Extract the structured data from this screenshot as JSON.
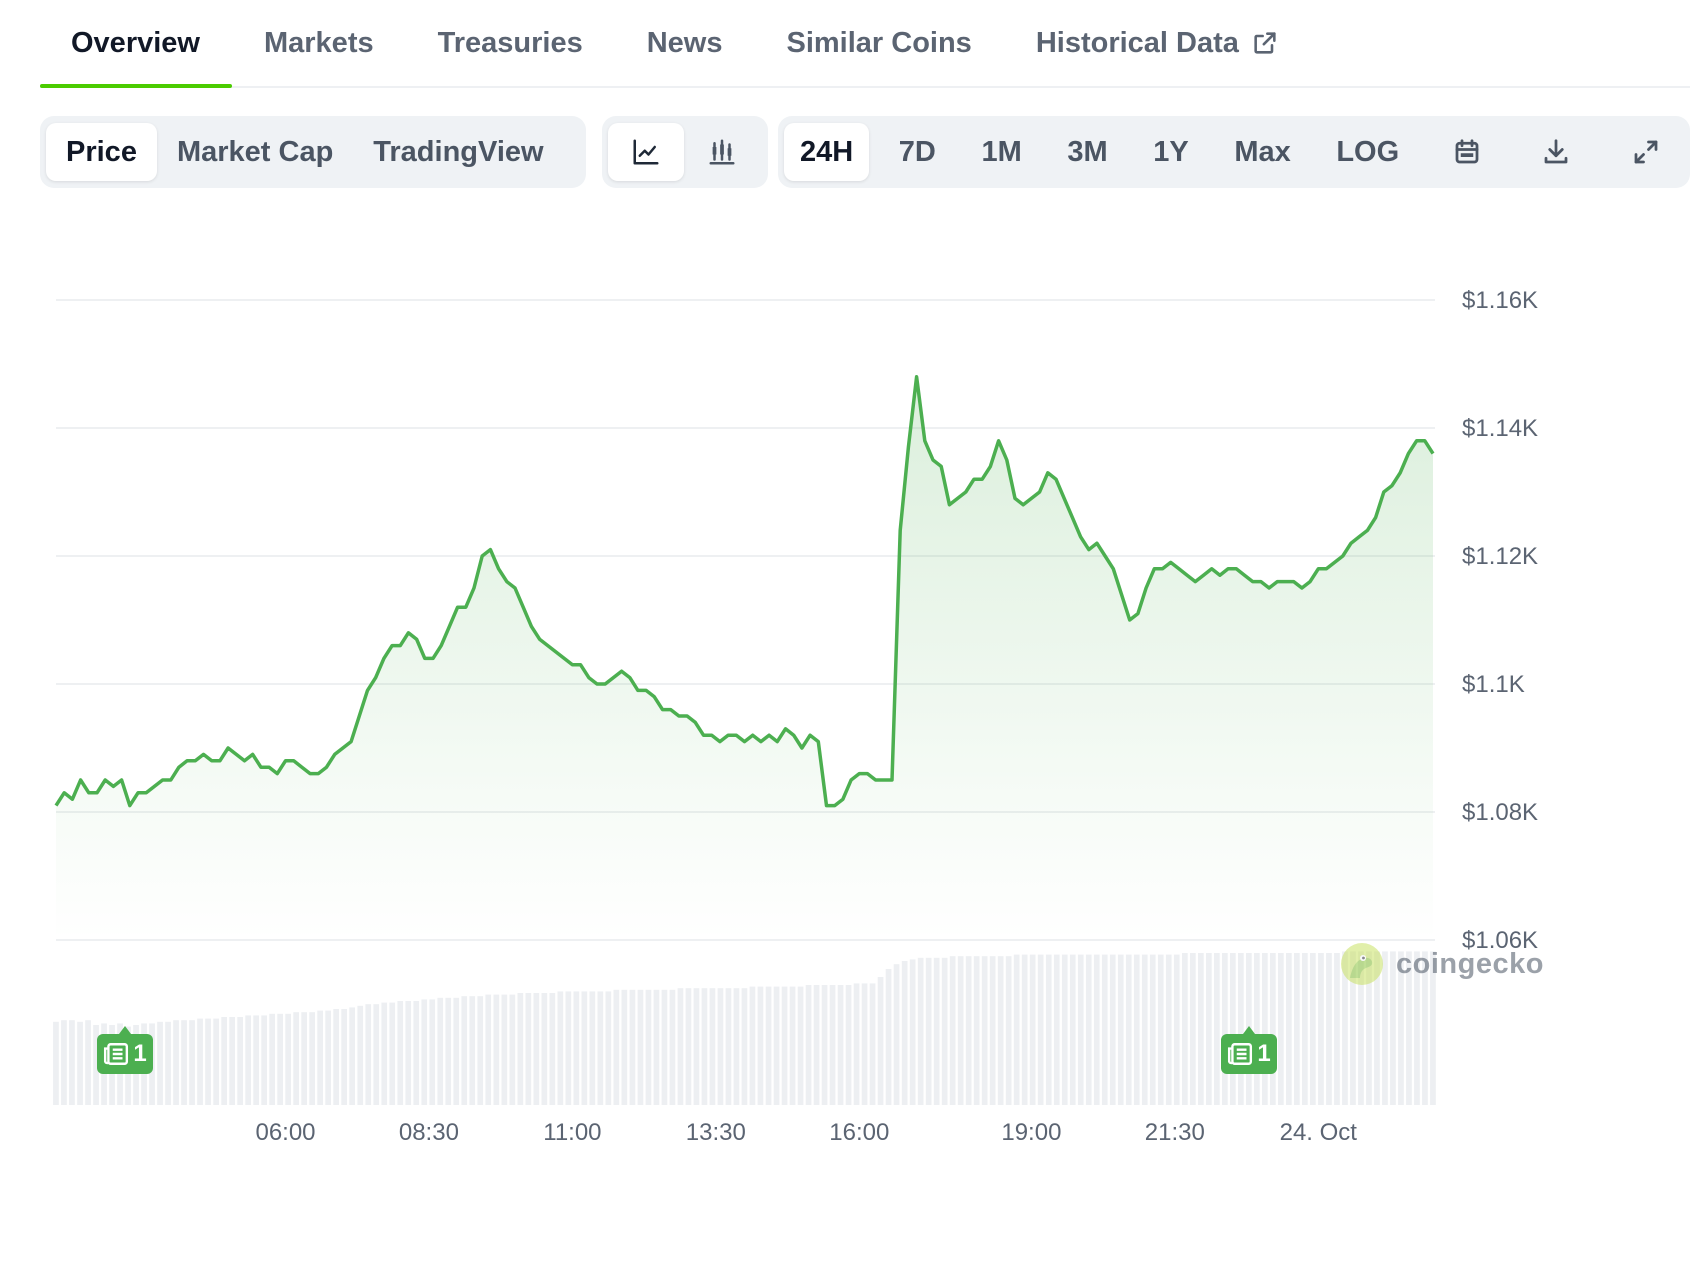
{
  "tabs": [
    {
      "label": "Overview",
      "active": true
    },
    {
      "label": "Markets",
      "active": false
    },
    {
      "label": "Treasuries",
      "active": false
    },
    {
      "label": "News",
      "active": false
    },
    {
      "label": "Similar Coins",
      "active": false
    },
    {
      "label": "Historical Data",
      "active": false
    }
  ],
  "toolbar": {
    "chart_source": [
      "Price",
      "Market Cap",
      "TradingView"
    ],
    "chart_source_active": "Price",
    "chart_style_icons": [
      "line-chart-icon",
      "candlestick-icon"
    ],
    "ranges": [
      "24H",
      "7D",
      "1M",
      "3M",
      "1Y",
      "Max",
      "LOG"
    ],
    "range_active": "24H",
    "action_icons": [
      "calendar-icon",
      "download-icon",
      "fullscreen-icon"
    ]
  },
  "news_markers": [
    {
      "count": "1",
      "time": "03:15"
    },
    {
      "count": "1",
      "time": "20:35"
    }
  ],
  "watermark": {
    "text": "coingecko"
  },
  "colors": {
    "line": "#4caf50",
    "fill": "#4caf50",
    "grid": "#eef0f2",
    "accent": "#4bcc00"
  },
  "chart_data": {
    "type": "line",
    "x_ticks": [
      "06:00",
      "08:30",
      "11:00",
      "13:30",
      "16:00",
      "19:00",
      "21:30",
      "24. Oct"
    ],
    "y_ticks": [
      "$1.16K",
      "$1.14K",
      "$1.12K",
      "$1.1K",
      "$1.08K",
      "$1.06K"
    ],
    "y_tick_values": [
      1160,
      1140,
      1120,
      1100,
      1080,
      1060
    ],
    "ylim": [
      1060,
      1160
    ],
    "grid": true,
    "series": [
      {
        "price": [
          1081,
          1083,
          1082,
          1085,
          1083,
          1083,
          1085,
          1084,
          1085,
          1081,
          1083,
          1083,
          1084,
          1085,
          1085,
          1087,
          1088,
          1088,
          1089,
          1088,
          1088,
          1090,
          1089,
          1088,
          1089,
          1087,
          1087,
          1086,
          1088,
          1088,
          1087,
          1086,
          1086,
          1087,
          1089,
          1090,
          1091,
          1095,
          1099,
          1101,
          1104,
          1106,
          1106,
          1108,
          1107,
          1104,
          1104,
          1106,
          1109,
          1112,
          1112,
          1115,
          1120,
          1121,
          1118,
          1116,
          1115,
          1112,
          1109,
          1107,
          1106,
          1105,
          1104,
          1103,
          1103,
          1101,
          1100,
          1100,
          1101,
          1102,
          1101,
          1099,
          1099,
          1098,
          1096,
          1096,
          1095,
          1095,
          1094,
          1092,
          1092,
          1091,
          1092,
          1092,
          1091,
          1092,
          1091,
          1092,
          1091,
          1093,
          1092,
          1090,
          1092,
          1091,
          1081,
          1081,
          1082,
          1085,
          1086,
          1086,
          1085,
          1085,
          1085,
          1124,
          1137,
          1148,
          1138,
          1135,
          1134,
          1128,
          1129,
          1130,
          1132,
          1132,
          1134,
          1138,
          1135,
          1129,
          1128,
          1129,
          1130,
          1133,
          1132,
          1129,
          1126,
          1123,
          1121,
          1122,
          1120,
          1118,
          1114,
          1110,
          1111,
          1115,
          1118,
          1118,
          1119,
          1118,
          1117,
          1116,
          1117,
          1118,
          1117,
          1118,
          1118,
          1117,
          1116,
          1116,
          1115,
          1116,
          1116,
          1116,
          1115,
          1116,
          1118,
          1118,
          1119,
          1120,
          1122,
          1123,
          1124,
          1126,
          1130,
          1131,
          1133,
          1136,
          1138,
          1138,
          1136
        ],
        "volume_relative": [
          0.52,
          0.53,
          0.53,
          0.52,
          0.53,
          0.5,
          0.51,
          0.5,
          0.51,
          0.49,
          0.5,
          0.51,
          0.51,
          0.52,
          0.52,
          0.53,
          0.53,
          0.53,
          0.54,
          0.54,
          0.54,
          0.55,
          0.55,
          0.55,
          0.56,
          0.56,
          0.56,
          0.57,
          0.57,
          0.57,
          0.58,
          0.58,
          0.58,
          0.59,
          0.59,
          0.6,
          0.6,
          0.61,
          0.62,
          0.63,
          0.63,
          0.64,
          0.64,
          0.65,
          0.65,
          0.65,
          0.66,
          0.66,
          0.67,
          0.67,
          0.67,
          0.68,
          0.68,
          0.68,
          0.69,
          0.69,
          0.69,
          0.69,
          0.7,
          0.7,
          0.7,
          0.7,
          0.7,
          0.71,
          0.71,
          0.71,
          0.71,
          0.71,
          0.71,
          0.71,
          0.72,
          0.72,
          0.72,
          0.72,
          0.72,
          0.72,
          0.72,
          0.72,
          0.73,
          0.73,
          0.73,
          0.73,
          0.73,
          0.73,
          0.73,
          0.73,
          0.73,
          0.74,
          0.74,
          0.74,
          0.74,
          0.74,
          0.74,
          0.74,
          0.75,
          0.75,
          0.75,
          0.75,
          0.75,
          0.75,
          0.76,
          0.76,
          0.76,
          0.8,
          0.85,
          0.88,
          0.9,
          0.91,
          0.92,
          0.92,
          0.92,
          0.92,
          0.93,
          0.93,
          0.93,
          0.93,
          0.93,
          0.93,
          0.93,
          0.93,
          0.94,
          0.94,
          0.94,
          0.94,
          0.94,
          0.94,
          0.94,
          0.94,
          0.94,
          0.94,
          0.94,
          0.94,
          0.94,
          0.94,
          0.94,
          0.94,
          0.94,
          0.94,
          0.94,
          0.94,
          0.94,
          0.95,
          0.95,
          0.95,
          0.95,
          0.95,
          0.95,
          0.95,
          0.95,
          0.95,
          0.95,
          0.95,
          0.95,
          0.95,
          0.95,
          0.95,
          0.95,
          0.95,
          0.95,
          0.95,
          0.95,
          0.96,
          0.96,
          0.96,
          0.96,
          0.96,
          0.96,
          0.96,
          0.96,
          0.96,
          0.96,
          0.96,
          0.96
        ]
      }
    ]
  }
}
